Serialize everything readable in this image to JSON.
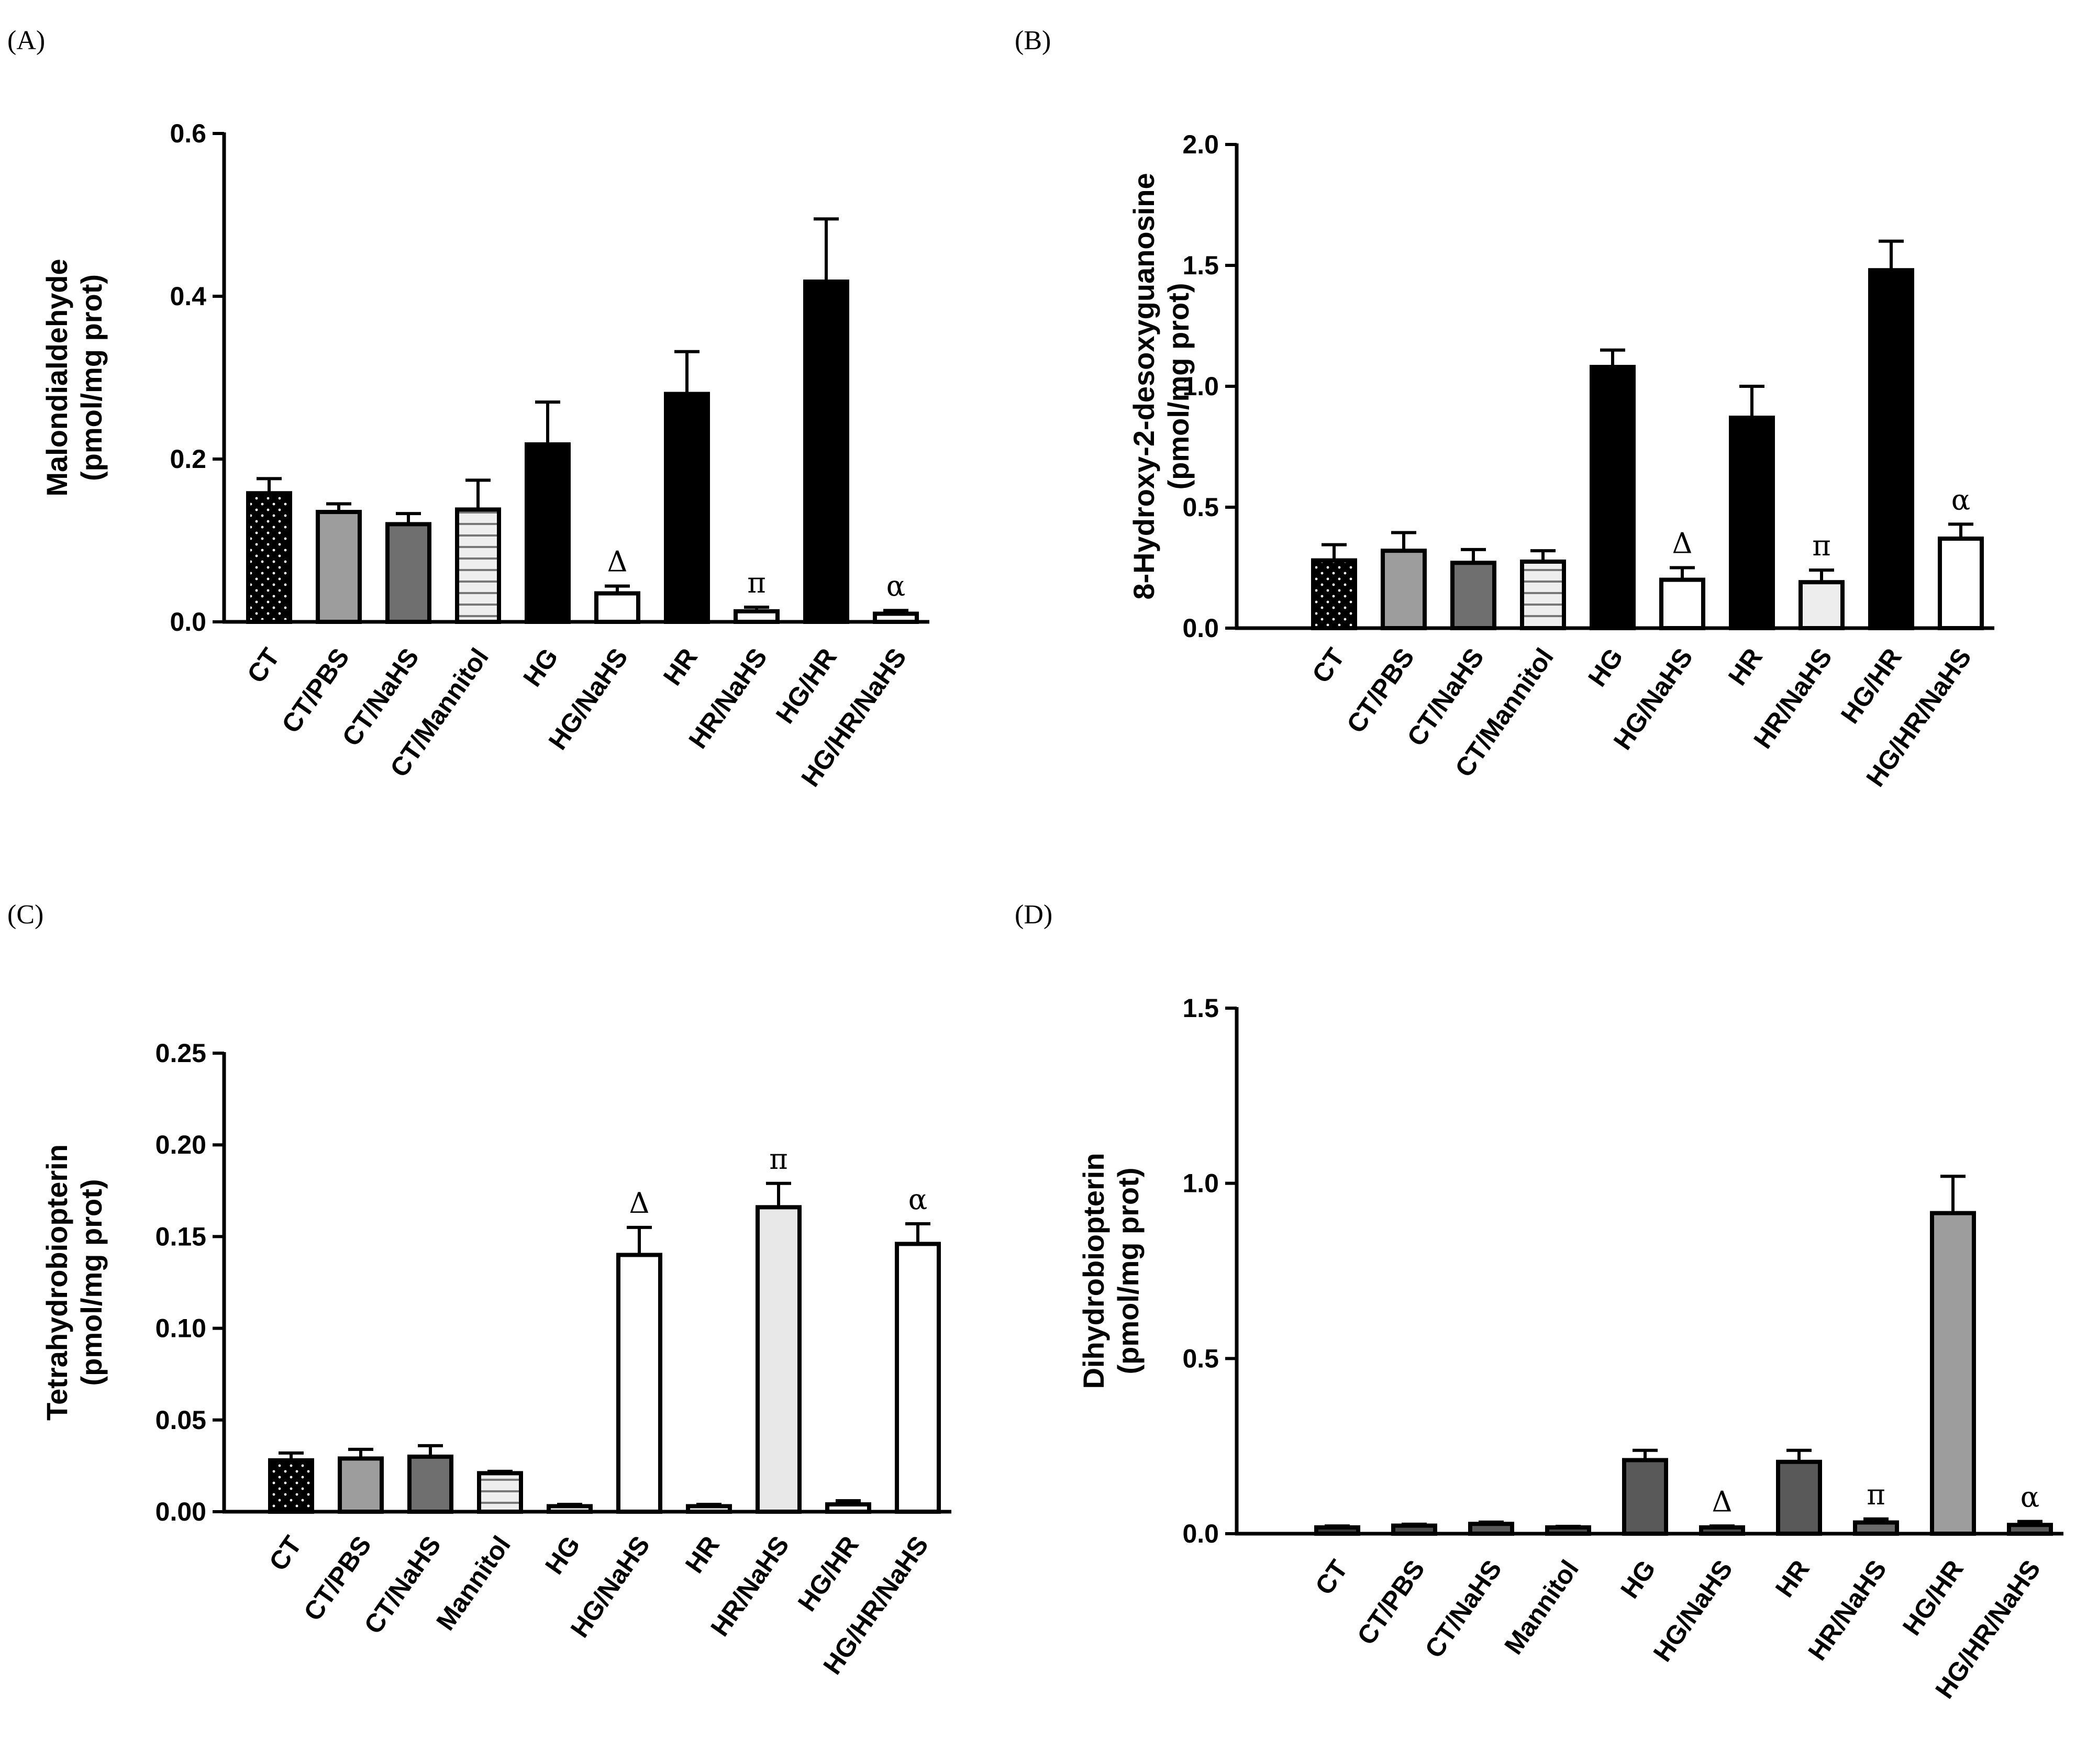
{
  "chart_data": [
    {
      "panel": "(A)",
      "type": "bar",
      "ylabel": [
        "Malondialdehyde",
        "(pmol/mg prot)"
      ],
      "ylim": [
        0,
        0.6
      ],
      "yticks": [
        "0.0",
        "0.2",
        "0.4",
        "0.6"
      ],
      "ytick_values": [
        0,
        0.2,
        0.4,
        0.6
      ],
      "categories": [
        "CT",
        "CT/PBS",
        "CT/NaHS",
        "CT/Mannitol",
        "HG",
        "HG/NaHS",
        "HR",
        "HR/NaHS",
        "HG/HR",
        "HG/HR/NaHS"
      ],
      "values": [
        0.158,
        0.135,
        0.12,
        0.138,
        0.218,
        0.035,
        0.28,
        0.013,
        0.418,
        0.01
      ],
      "errors": [
        0.018,
        0.01,
        0.013,
        0.036,
        0.052,
        0.009,
        0.052,
        0.005,
        0.077,
        0.004
      ],
      "fills": [
        "#000000",
        "#9d9d9d",
        "#6f6f6f",
        "#eeeeee",
        "#000000",
        "#ffffff",
        "#000000",
        "#ffffff",
        "#000000",
        "#ffffff"
      ],
      "patterns": [
        "dots",
        "",
        "",
        "hlines",
        "",
        "",
        "",
        "",
        "",
        ""
      ],
      "annotations": [
        "",
        "",
        "",
        "",
        "",
        "Δ",
        "",
        "π",
        "",
        "α"
      ]
    },
    {
      "panel": "(B)",
      "type": "bar",
      "ylabel": [
        "8-Hydroxy-2-desoxyguanosine",
        "(pmol/mg prot)"
      ],
      "ylim": [
        0,
        2.0
      ],
      "yticks": [
        "0.0",
        "0.5",
        "1.0",
        "1.5",
        "2.0"
      ],
      "ytick_values": [
        0,
        0.5,
        1.0,
        1.5,
        2.0
      ],
      "categories": [
        "CT",
        "CT/PBS",
        "CT/NaHS",
        "CT/Mannitol",
        "HG",
        "HG/NaHS",
        "HR",
        "HR/NaHS",
        "HG/HR",
        "HG/HR/NaHS"
      ],
      "values": [
        0.28,
        0.32,
        0.27,
        0.275,
        1.08,
        0.2,
        0.87,
        0.19,
        1.48,
        0.37
      ],
      "errors": [
        0.065,
        0.075,
        0.055,
        0.045,
        0.07,
        0.05,
        0.13,
        0.05,
        0.12,
        0.06
      ],
      "fills": [
        "#000000",
        "#9d9d9d",
        "#6f6f6f",
        "#eeeeee",
        "#000000",
        "#ffffff",
        "#000000",
        "#ededed",
        "#000000",
        "#ffffff"
      ],
      "patterns": [
        "dots",
        "",
        "",
        "hlines",
        "",
        "",
        "",
        "",
        "",
        ""
      ],
      "annotations": [
        "",
        "",
        "",
        "",
        "",
        "Δ",
        "",
        "π",
        "",
        "α"
      ]
    },
    {
      "panel": "(C)",
      "type": "bar",
      "ylabel": [
        "Tetrahydrobiopterin",
        "(pmol/mg prot)"
      ],
      "ylim": [
        0,
        0.25
      ],
      "yticks": [
        "0.00",
        "0.05",
        "0.10",
        "0.15",
        "0.20",
        "0.25"
      ],
      "ytick_values": [
        0,
        0.05,
        0.1,
        0.15,
        0.2,
        0.25
      ],
      "categories": [
        "CT",
        "CT/PBS",
        "CT/NaHS",
        "Mannitol",
        "HG",
        "HG/NaHS",
        "HR",
        "HR/NaHS",
        "HG/HR",
        "HG/HR/NaHS"
      ],
      "values": [
        0.028,
        0.029,
        0.03,
        0.021,
        0.003,
        0.14,
        0.003,
        0.166,
        0.004,
        0.146
      ],
      "errors": [
        0.004,
        0.005,
        0.006,
        0.001,
        0.001,
        0.015,
        0.001,
        0.013,
        0.002,
        0.011
      ],
      "fills": [
        "#000000",
        "#9d9d9d",
        "#6f6f6f",
        "#eeeeee",
        "#ffffff",
        "#ffffff",
        "#ffffff",
        "#e8e8e8",
        "#ffffff",
        "#ffffff"
      ],
      "patterns": [
        "dots",
        "",
        "",
        "hlines",
        "",
        "",
        "",
        "",
        "",
        ""
      ],
      "annotations": [
        "",
        "",
        "",
        "",
        "",
        "Δ",
        "",
        "π",
        "",
        "α"
      ]
    },
    {
      "panel": "(D)",
      "type": "bar",
      "ylabel": [
        "Dihydrobiopterin",
        "(pmol/mg prot)"
      ],
      "ylim": [
        0,
        1.5
      ],
      "yticks": [
        "0.0",
        "0.5",
        "1.0",
        "1.5"
      ],
      "ytick_values": [
        0,
        0.5,
        1.0,
        1.5
      ],
      "categories": [
        "CT",
        "CT/PBS",
        "CT/NaHS",
        "Mannitol",
        "HG",
        "HG/NaHS",
        "HR",
        "HR/NaHS",
        "HG/HR",
        "HG/HR/NaHS"
      ],
      "values": [
        0.018,
        0.023,
        0.028,
        0.018,
        0.21,
        0.018,
        0.205,
        0.032,
        0.915,
        0.025
      ],
      "errors": [
        0.004,
        0.004,
        0.005,
        0.003,
        0.028,
        0.004,
        0.033,
        0.01,
        0.105,
        0.01
      ],
      "fills": [
        "#3a3a3a",
        "#4a4a4a",
        "#5a5a5a",
        "#4a4a4a",
        "#595959",
        "#4a4a4a",
        "#595959",
        "#6a6a6a",
        "#9d9d9d",
        "#5a5a5a"
      ],
      "patterns": [
        "",
        "",
        "",
        "",
        "",
        "",
        "",
        "",
        "",
        ""
      ],
      "annotations": [
        "",
        "",
        "",
        "",
        "",
        "Δ",
        "",
        "π",
        "",
        "α"
      ]
    }
  ]
}
